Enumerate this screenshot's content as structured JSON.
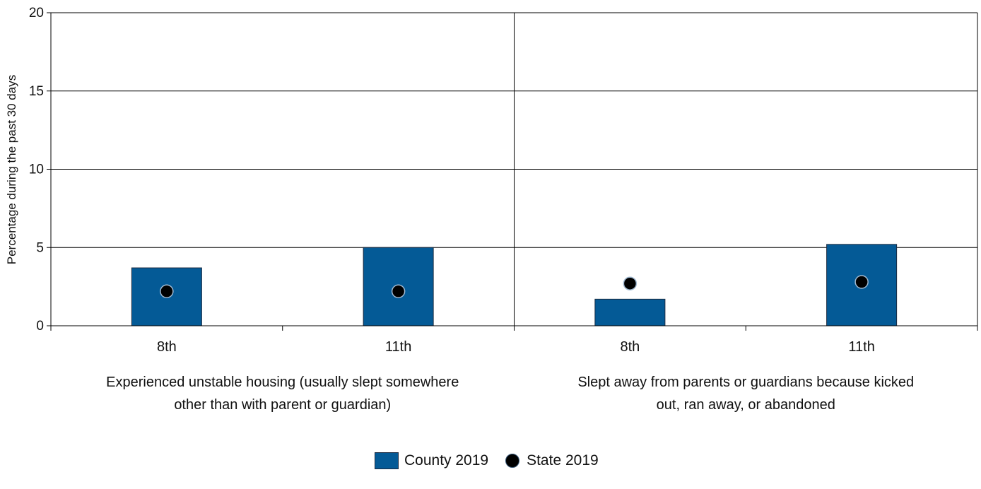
{
  "chart_data": {
    "type": "bar",
    "ylabel": "Percentage during the past 30 days",
    "ylim": [
      0,
      20
    ],
    "yticks": [
      0,
      5,
      10,
      15,
      20
    ],
    "grid": true,
    "legend_position": "bottom",
    "groups": [
      {
        "label_lines": [
          "Experienced unstable housing (usually slept somewhere",
          "other than with parent or guardian)"
        ],
        "categories": [
          "8th",
          "11th"
        ],
        "county": [
          3.7,
          5.0
        ],
        "state": [
          2.2,
          2.2
        ]
      },
      {
        "label_lines": [
          "Slept away from parents or guardians because kicked",
          "out, ran away, or abandoned"
        ],
        "categories": [
          "8th",
          "11th"
        ],
        "county": [
          1.7,
          5.2
        ],
        "state": [
          2.7,
          2.8
        ]
      }
    ],
    "series": [
      {
        "name": "County 2019",
        "kind": "bar",
        "color": "#045a96"
      },
      {
        "name": "State 2019",
        "kind": "dot",
        "color": "#000000"
      }
    ]
  }
}
